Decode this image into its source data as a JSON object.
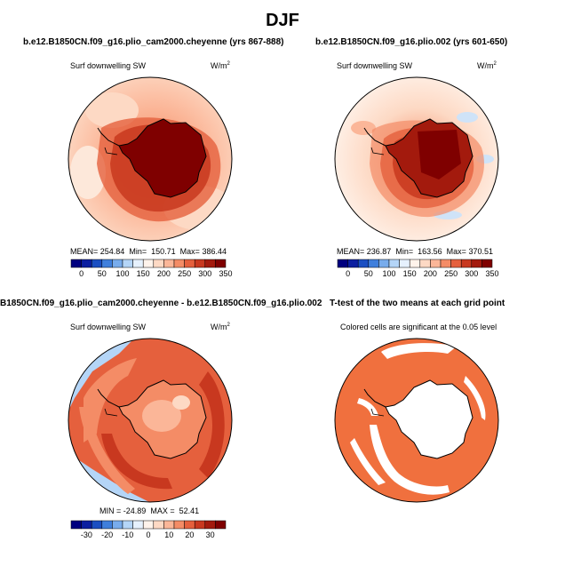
{
  "title": "DJF",
  "panels": [
    {
      "title": "b.e12.B1850CN.f09_g16.plio_cam2000.cheyenne (yrs 867-888)",
      "variable": "Surf downwelling SW",
      "units": "W/m",
      "units_exp": "2",
      "stats": {
        "mean_label": "MEAN=",
        "mean": "254.84",
        "min_label": "Min=",
        "min": "150.71",
        "max_label": "Max=",
        "max": "386.44"
      }
    },
    {
      "title": "b.e12.B1850CN.f09_g16.plio.002 (yrs 601-650)",
      "variable": "Surf downwelling SW",
      "units": "W/m",
      "units_exp": "2",
      "stats": {
        "mean_label": "MEAN=",
        "mean": "236.87",
        "min_label": "Min=",
        "min": "163.56",
        "max_label": "Max=",
        "max": "370.51"
      }
    },
    {
      "title": "B1850CN.f09_g16.plio_cam2000.cheyenne - b.e12.B1850CN.f09_g16.plio.002",
      "variable": "Surf downwelling SW",
      "units": "W/m",
      "units_exp": "2",
      "stats": {
        "min_label": "MIN =",
        "min": "-24.89",
        "max_label": "MAX =",
        "max": "52.41"
      }
    },
    {
      "title": "T-test of the two means at each grid point",
      "note": "Colored cells are significant at the 0.05 level"
    }
  ],
  "colorbars": {
    "abs": {
      "labels": [
        "0",
        "50",
        "100",
        "150",
        "200",
        "250",
        "300",
        "350"
      ]
    },
    "diff": {
      "labels": [
        "-30",
        "-20",
        "-10",
        "0",
        "10",
        "20",
        "30"
      ]
    }
  },
  "palette": [
    "#00007f",
    "#0c1fa0",
    "#1b4fc2",
    "#3f7fdc",
    "#78acec",
    "#b4d5f7",
    "#e6f1fd",
    "#fff3eb",
    "#fdd9c4",
    "#fbb698",
    "#f48c66",
    "#e5603d",
    "#c8381f",
    "#a31a0d",
    "#7f0000"
  ],
  "colors": {
    "antarctica_max": "#7f0000",
    "ttest_fill": "#f0703e",
    "coast": "#000000"
  }
}
